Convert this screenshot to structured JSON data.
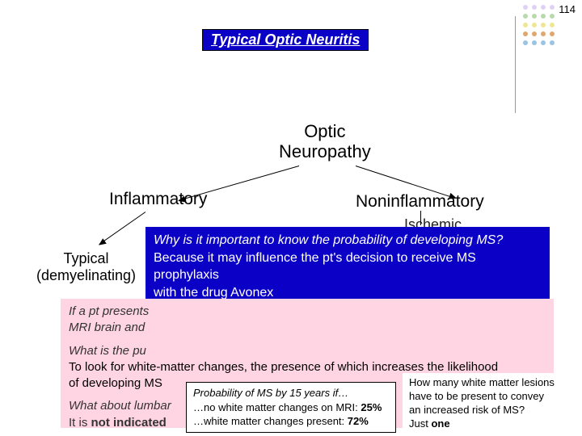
{
  "page_number": "114",
  "title": "Typical Optic Neuritis",
  "dots": {
    "colors_by_row": [
      [
        "#a57be0",
        "#a57be0",
        "#a57be0",
        "#a57be0"
      ],
      [
        "#6ab150",
        "#6ab150",
        "#6ab150",
        "#6ab150"
      ],
      [
        "#e2d84e",
        "#e2d84e",
        "#e2d84e",
        "#e2d84e"
      ],
      [
        "#d4883a",
        "#d4883a",
        "#d4883a",
        "#d4883a"
      ],
      [
        "#8bbbe0",
        "#8bbbe0",
        "#8bbbe0",
        "#8bbbe0"
      ]
    ]
  },
  "nodes": {
    "root": "Optic\nNeuropathy",
    "inflam": "Inflammatory",
    "noninflam": "Noninflammatory",
    "typical": "Typical\n(demyelinating)",
    "ischemic": "Ischemic"
  },
  "blue_box": {
    "q1": "Why is it important to know the probability of developing MS?",
    "a1_l1": "Because it may influence the pt's decision to receive MS prophylaxis",
    "a1_l2": "with the drug Avonex"
  },
  "pink": {
    "p1_l1": "If a pt presents",
    "p1_l2": "MRI brain and",
    "p2": "What is the pu",
    "p3_l1": "To look for white-matter changes, the presence of which increases the likelihood",
    "p3_l2": "of developing MS",
    "p4_l1": "What about lumbar",
    "p4_l2_pre": "It is ",
    "p4_l2_bold": "not indicated"
  },
  "inner": {
    "title_pre": "Probability of MS by 15 years if…",
    "r1_pre": "…no white matter changes on MRI: ",
    "r1_val": "25%",
    "r2_pre": "…white matter changes present: ",
    "r2_val": "72%"
  },
  "side": {
    "l1": "How many white matter lesions",
    "l2_pre": "have  to be present to convey",
    "l3": "an increased risk of MS?",
    "l4_pre": "Just ",
    "l4_bold": "one"
  },
  "colors": {
    "blue": "#0a00c6",
    "pink": "#ffd5e3"
  }
}
